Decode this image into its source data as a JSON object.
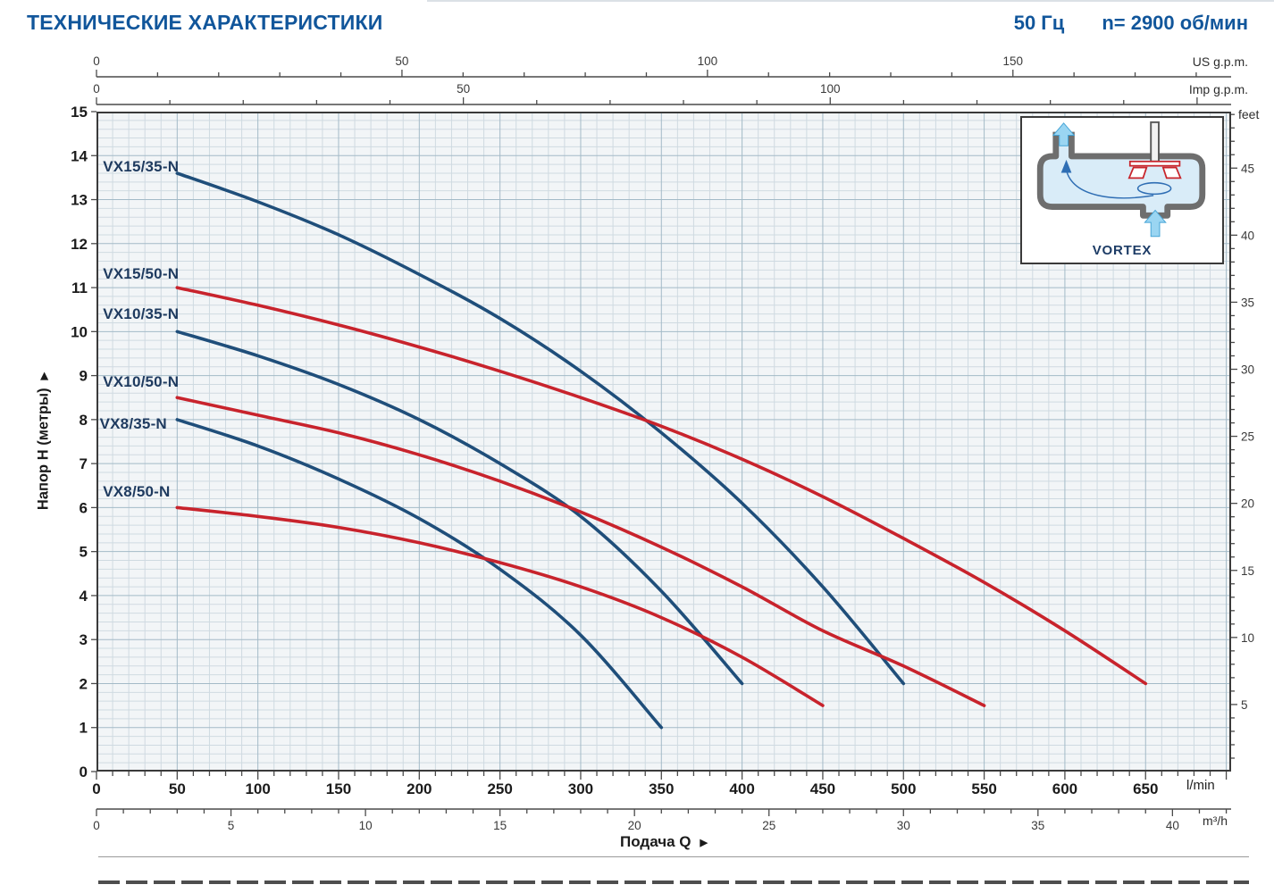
{
  "header": {
    "title": "ТЕХНИЧЕСКИЕ ХАРАКТЕРИСТИКИ",
    "frequency": "50 Гц",
    "speed": "n= 2900 об/мин"
  },
  "icons": {
    "arrow_right": "▶"
  },
  "axis_labels": {
    "head": "Напор H (метры)",
    "flow": "Подача Q"
  },
  "axes": {
    "us_gpm": {
      "label": "US g.p.m.",
      "ticks": [
        0,
        50,
        100,
        150
      ]
    },
    "imp_gpm": {
      "label": "Imp g.p.m.",
      "ticks": [
        0,
        50,
        100
      ]
    },
    "lmin": {
      "label": "l/min",
      "ticks": [
        0,
        50,
        100,
        150,
        200,
        250,
        300,
        350,
        400,
        450,
        500,
        550,
        600,
        650
      ]
    },
    "m3h": {
      "label": "m³/h",
      "ticks": [
        0,
        5,
        10,
        15,
        20,
        25,
        30,
        35,
        40
      ]
    },
    "meters": {
      "ticks": [
        0,
        1,
        2,
        3,
        4,
        5,
        6,
        7,
        8,
        9,
        10,
        11,
        12,
        13,
        14,
        15
      ]
    },
    "feet": {
      "label": "feet",
      "ticks": [
        5,
        10,
        15,
        20,
        25,
        30,
        35,
        40,
        45
      ]
    }
  },
  "inset": {
    "label": "VORTEX"
  },
  "chart_data": {
    "type": "line",
    "title": "ТЕХНИЧЕСКИЕ ХАРАКТЕРИСТИКИ",
    "xlabel": "Подача Q",
    "ylabel": "Напор H (метры)",
    "x_unit": "l/min",
    "y_unit": "m",
    "xlim": [
      0,
      703
    ],
    "ylim": [
      0,
      15
    ],
    "grid": true,
    "series": [
      {
        "name": "VX15/35-N",
        "color": "#1f4e7a",
        "label_pos": [
          4,
          13.75
        ],
        "points": [
          [
            50,
            13.6
          ],
          [
            100,
            12.95
          ],
          [
            150,
            12.2
          ],
          [
            200,
            11.3
          ],
          [
            250,
            10.3
          ],
          [
            300,
            9.1
          ],
          [
            350,
            7.7
          ],
          [
            400,
            6.1
          ],
          [
            450,
            4.2
          ],
          [
            500,
            2.0
          ]
        ]
      },
      {
        "name": "VX15/50-N",
        "color": "#c8232c",
        "label_pos": [
          4,
          11.3
        ],
        "points": [
          [
            50,
            11.0
          ],
          [
            100,
            10.6
          ],
          [
            150,
            10.15
          ],
          [
            200,
            9.65
          ],
          [
            250,
            9.1
          ],
          [
            300,
            8.5
          ],
          [
            350,
            7.85
          ],
          [
            400,
            7.1
          ],
          [
            450,
            6.25
          ],
          [
            500,
            5.3
          ],
          [
            550,
            4.3
          ],
          [
            600,
            3.2
          ],
          [
            650,
            2.0
          ]
        ]
      },
      {
        "name": "VX10/35-N",
        "color": "#1f4e7a",
        "label_pos": [
          4,
          10.4
        ],
        "points": [
          [
            50,
            10.0
          ],
          [
            100,
            9.45
          ],
          [
            150,
            8.8
          ],
          [
            200,
            8.0
          ],
          [
            250,
            7.0
          ],
          [
            300,
            5.8
          ],
          [
            350,
            4.1
          ],
          [
            400,
            2.0
          ]
        ]
      },
      {
        "name": "VX10/50-N",
        "color": "#c8232c",
        "label_pos": [
          4,
          8.85
        ],
        "points": [
          [
            50,
            8.5
          ],
          [
            100,
            8.1
          ],
          [
            150,
            7.7
          ],
          [
            200,
            7.2
          ],
          [
            250,
            6.6
          ],
          [
            300,
            5.9
          ],
          [
            350,
            5.1
          ],
          [
            400,
            4.2
          ],
          [
            450,
            3.2
          ],
          [
            500,
            2.4
          ],
          [
            550,
            1.5
          ]
        ]
      },
      {
        "name": "VX8/35-N",
        "color": "#1f4e7a",
        "label_pos": [
          2,
          7.9
        ],
        "points": [
          [
            50,
            8.0
          ],
          [
            100,
            7.4
          ],
          [
            150,
            6.65
          ],
          [
            200,
            5.75
          ],
          [
            250,
            4.6
          ],
          [
            300,
            3.1
          ],
          [
            350,
            1.0
          ]
        ]
      },
      {
        "name": "VX8/50-N",
        "color": "#c8232c",
        "label_pos": [
          4,
          6.35
        ],
        "points": [
          [
            50,
            6.0
          ],
          [
            100,
            5.8
          ],
          [
            150,
            5.55
          ],
          [
            200,
            5.2
          ],
          [
            250,
            4.75
          ],
          [
            300,
            4.2
          ],
          [
            350,
            3.5
          ],
          [
            400,
            2.6
          ],
          [
            450,
            1.5
          ]
        ]
      }
    ]
  }
}
